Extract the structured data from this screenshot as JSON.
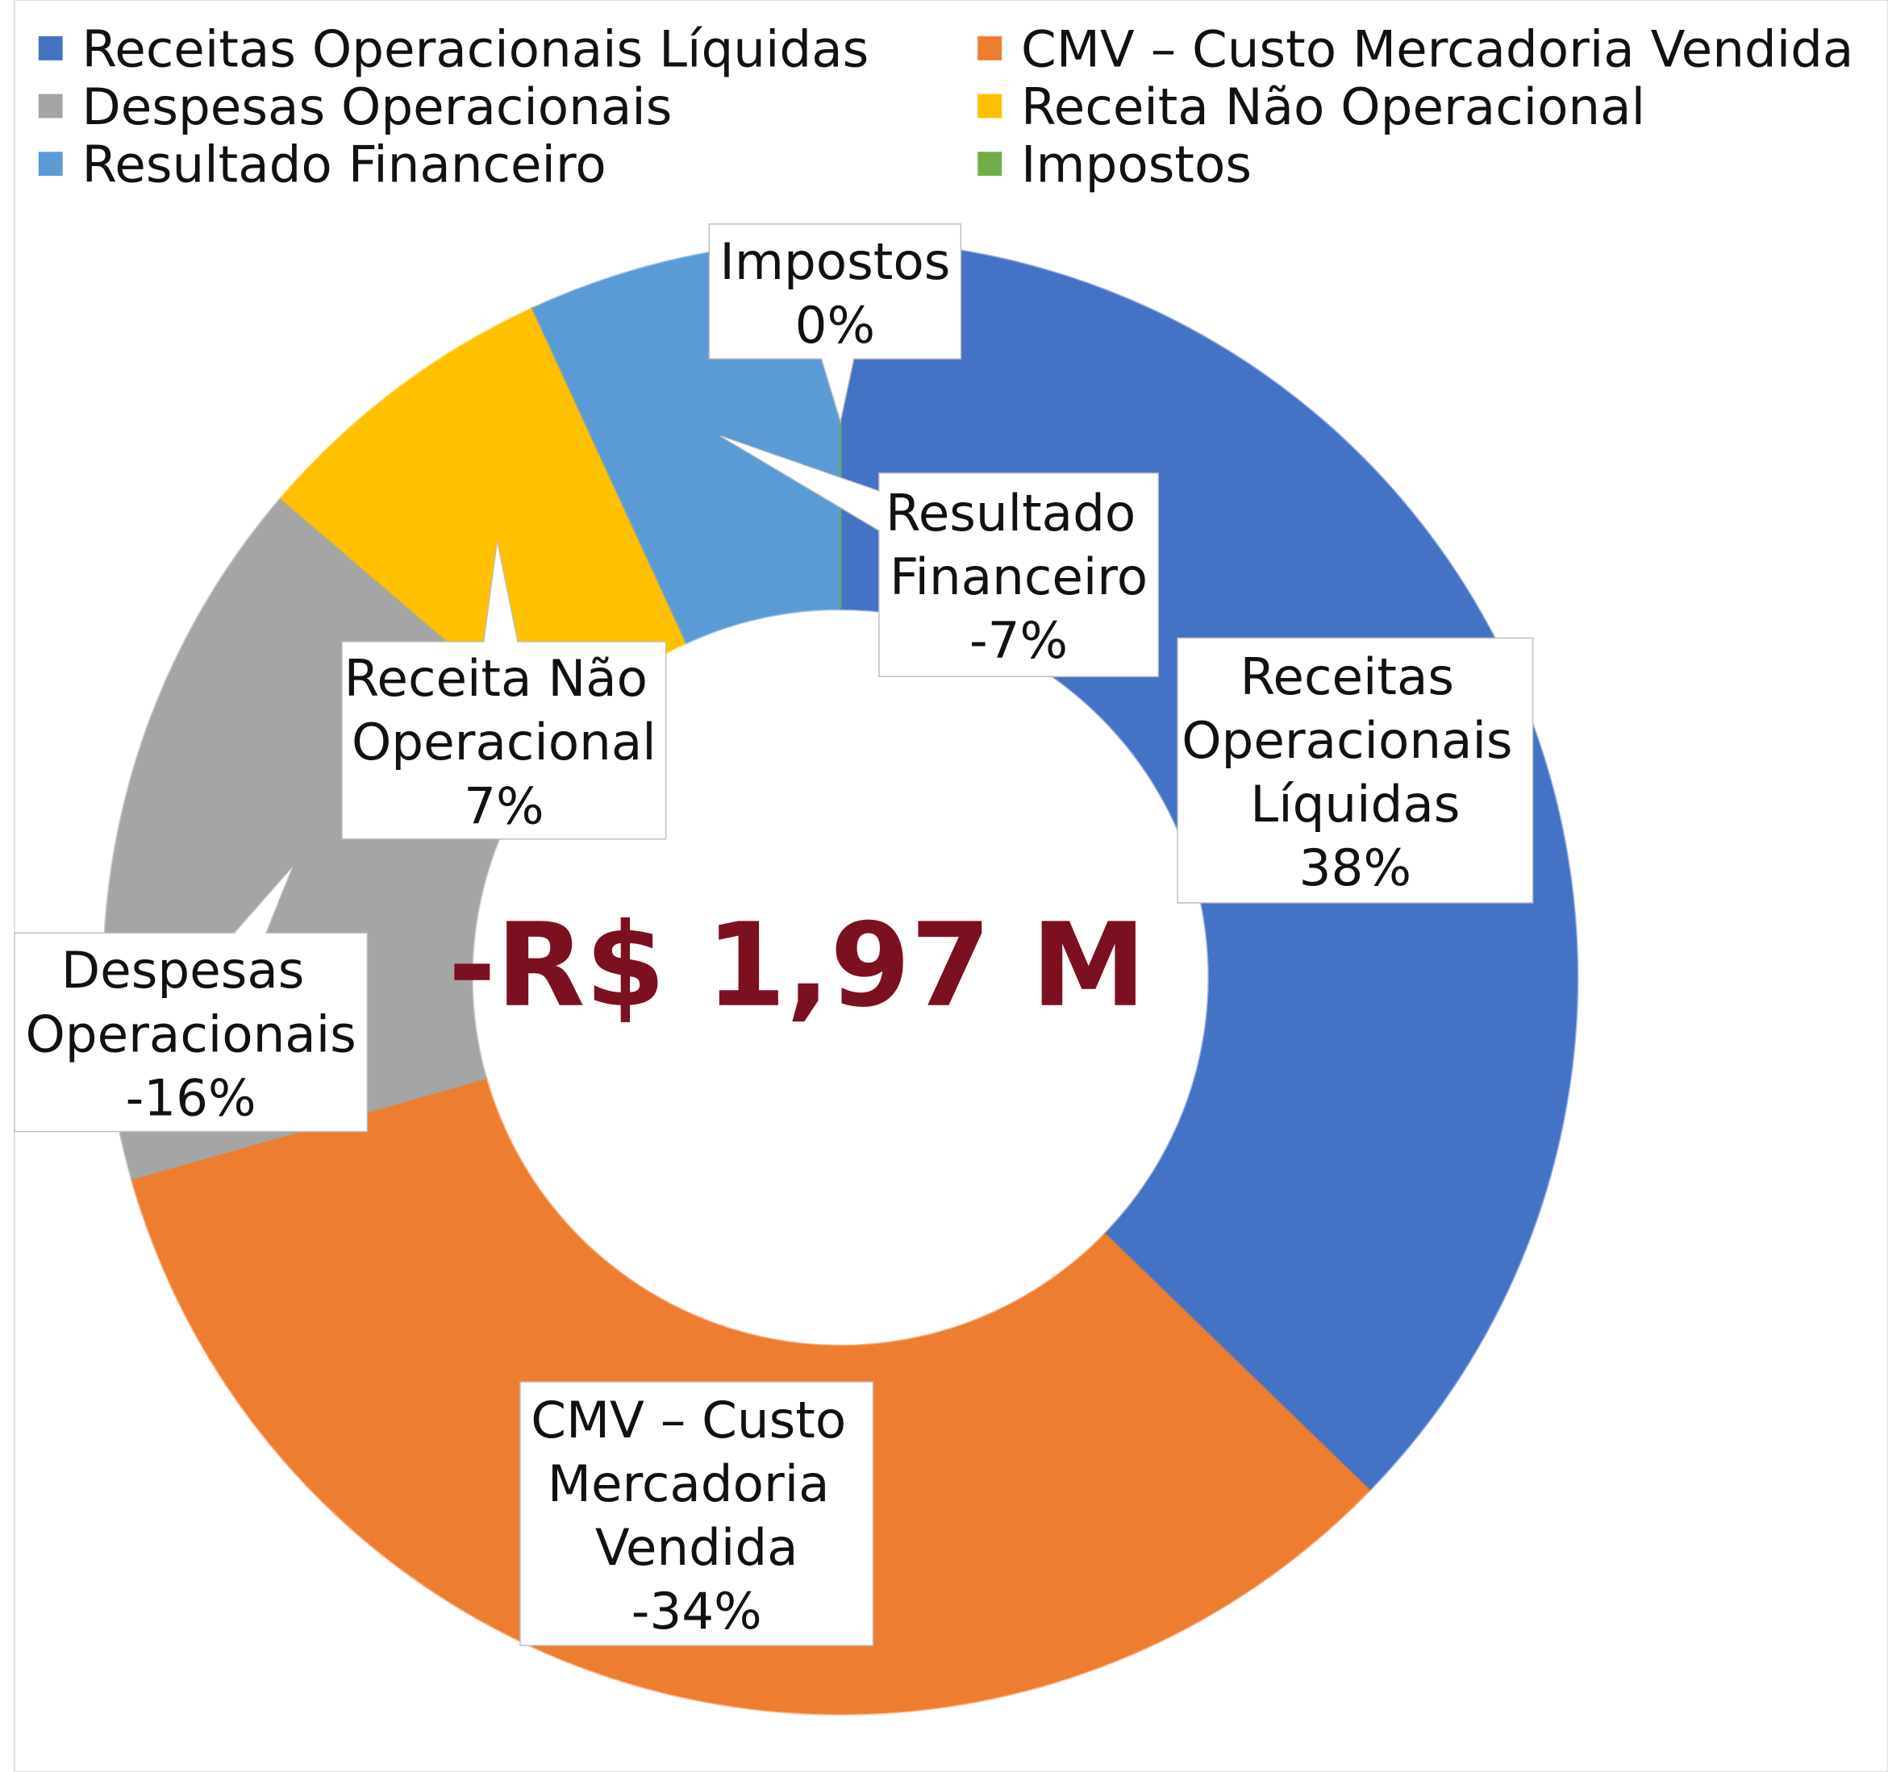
{
  "chart_data": {
    "type": "donut",
    "categories": [
      "Receitas Operacionais Líquidas",
      "CMV – Custo Mercadoria Vendida",
      "Despesas Operacionais",
      "Receita Não Operacional",
      "Resultado Financeiro",
      "Impostos"
    ],
    "values": [
      38,
      -34,
      -16,
      7,
      -7,
      0
    ],
    "value_labels": [
      "38%",
      "-34%",
      "-16%",
      "7%",
      "-7%",
      "0%"
    ],
    "colors": [
      "#4472c4",
      "#ed7d31",
      "#a5a5a5",
      "#ffc000",
      "#5b9bd5",
      "#70ad47"
    ],
    "center_label": "-R$ 1,97 M",
    "legend": "top"
  }
}
